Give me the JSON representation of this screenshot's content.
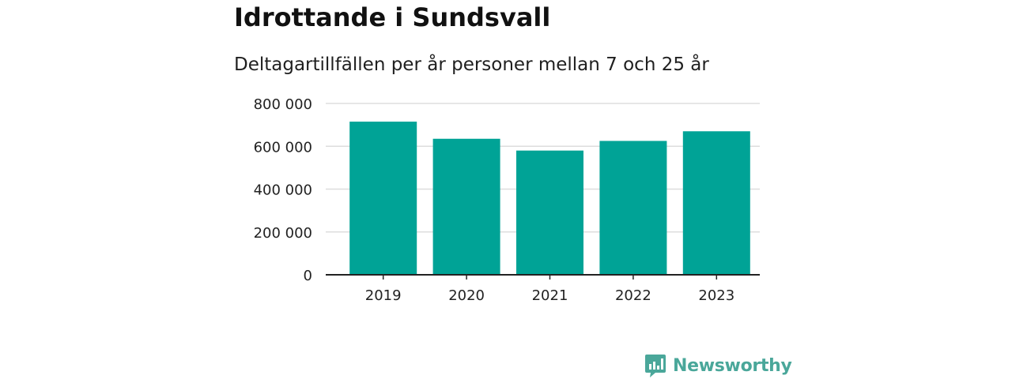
{
  "colors": {
    "bar": "#00a396",
    "grid": "#dddddd",
    "axis": "#222222",
    "tick_text": "#222222",
    "brand": "#4aa79a"
  },
  "logo": {
    "text": "Newsworthy",
    "icon": "newsworthy-logo-icon"
  },
  "chart_data": {
    "type": "bar",
    "title": "Idrottande i Sundsvall",
    "subtitle": "Deltagartillfällen per år personer mellan 7 och 25 år",
    "categories": [
      "2019",
      "2020",
      "2021",
      "2022",
      "2023"
    ],
    "values": [
      715000,
      635000,
      580000,
      625000,
      670000
    ],
    "ylim": [
      0,
      800000
    ],
    "yticks": [
      0,
      200000,
      400000,
      600000,
      800000
    ],
    "ytick_labels": [
      "0",
      "200 000",
      "400 000",
      "600 000",
      "800 000"
    ],
    "grid": true,
    "legend": "none"
  }
}
